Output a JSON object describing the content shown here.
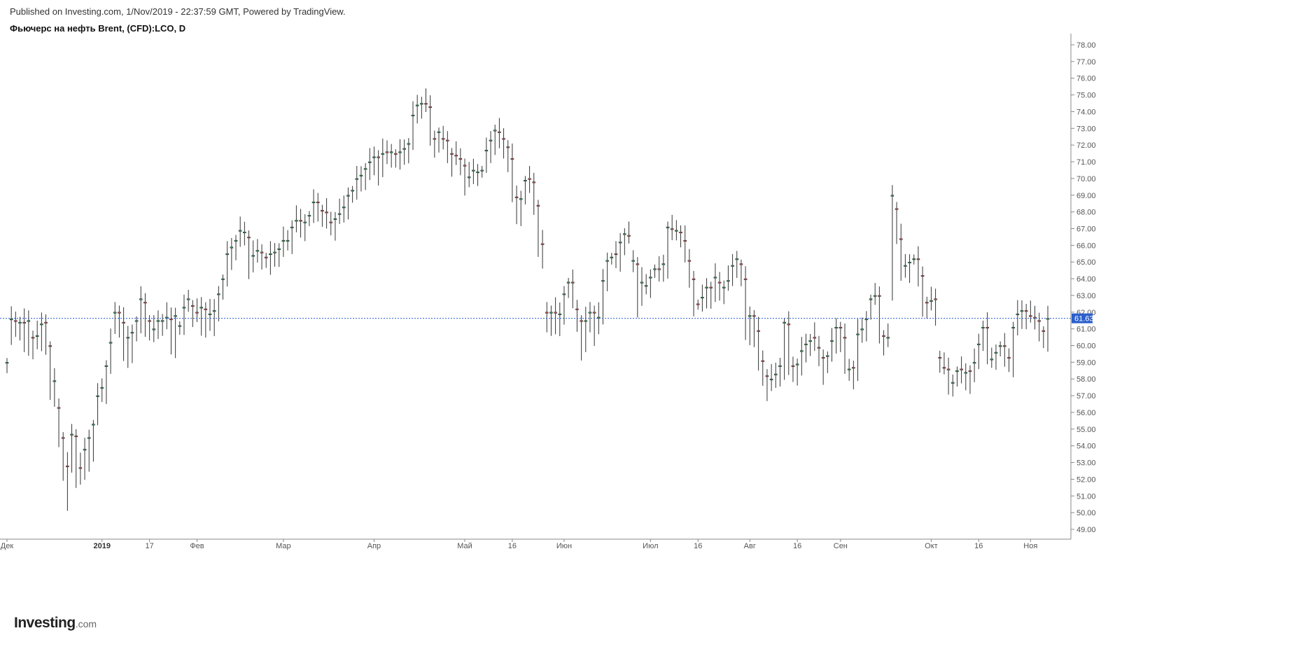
{
  "header": {
    "published": "Published on Investing.com, 1/Nov/2019 - 22:37:59 GMT, Powered by TradingView.",
    "title": "Фьючерс на нефть Brent, (CFD):LCO, D"
  },
  "logo": {
    "main": "Investing",
    "suffix": ".com"
  },
  "colors": {
    "up": "#26a65b",
    "down": "#e05050",
    "last_price": "#2a5fcc"
  },
  "chart_data": {
    "type": "candlestick",
    "ylim": [
      48.5,
      78.5
    ],
    "y_ticks": [
      "49.00",
      "50.00",
      "51.00",
      "52.00",
      "53.00",
      "54.00",
      "55.00",
      "56.00",
      "57.00",
      "58.00",
      "59.00",
      "60.00",
      "61.00",
      "62.00",
      "63.00",
      "64.00",
      "65.00",
      "66.00",
      "67.00",
      "68.00",
      "69.00",
      "70.00",
      "71.00",
      "72.00",
      "73.00",
      "74.00",
      "75.00",
      "76.00",
      "77.00",
      "78.00"
    ],
    "x_ticks": [
      {
        "label": "Дек",
        "i": 0,
        "bold": false
      },
      {
        "label": "2019",
        "i": 22,
        "bold": true
      },
      {
        "label": "17",
        "i": 33,
        "bold": false
      },
      {
        "label": "Фев",
        "i": 44,
        "bold": false
      },
      {
        "label": "Мар",
        "i": 64,
        "bold": false
      },
      {
        "label": "Апр",
        "i": 85,
        "bold": false
      },
      {
        "label": "Май",
        "i": 106,
        "bold": false
      },
      {
        "label": "16",
        "i": 117,
        "bold": false
      },
      {
        "label": "Июн",
        "i": 129,
        "bold": false
      },
      {
        "label": "Июл",
        "i": 149,
        "bold": false
      },
      {
        "label": "16",
        "i": 160,
        "bold": false
      },
      {
        "label": "Авг",
        "i": 172,
        "bold": false
      },
      {
        "label": "16",
        "i": 183,
        "bold": false
      },
      {
        "label": "Сен",
        "i": 193,
        "bold": false
      },
      {
        "label": "Окт",
        "i": 214,
        "bold": false
      },
      {
        "label": "16",
        "i": 225,
        "bold": false
      },
      {
        "label": "Ноя",
        "i": 237,
        "bold": false
      }
    ],
    "last_price": 61.63,
    "last_price_label": "61.63",
    "closes": [
      59.0,
      61.6,
      61.2,
      61.4,
      60.0,
      61.5,
      60.0,
      60.6,
      61.3,
      60.2,
      57.0,
      57.9,
      54.6,
      52.8,
      50.5,
      54.7,
      52.3,
      52.0,
      53.8,
      54.5,
      55.3,
      57.0,
      57.5,
      58.8,
      60.2,
      62.0,
      61.3,
      59.4,
      60.5,
      60.8,
      61.5,
      62.8,
      61.2,
      61.2,
      61.0,
      61.5,
      61.5,
      61.7,
      60.0,
      61.8,
      61.2,
      62.3,
      62.8,
      62.0,
      61.8,
      62.3,
      61.3,
      61.9,
      62.1,
      63.1,
      64.0,
      65.5,
      65.9,
      66.3,
      66.9,
      66.8,
      64.8,
      65.4,
      65.7,
      65.3,
      64.9,
      65.5,
      65.6,
      65.8,
      66.3,
      66.3,
      67.1,
      67.5,
      67.0,
      67.4,
      67.8,
      68.6,
      68.1,
      68.0,
      67.4,
      67.2,
      67.6,
      67.9,
      68.3,
      69.0,
      69.3,
      70.0,
      70.2,
      70.6,
      71.0,
      71.3,
      70.4,
      71.5,
      71.4,
      71.6,
      70.9,
      71.6,
      71.8,
      72.1,
      73.8,
      74.4,
      74.5,
      74.3,
      72.5,
      72.0,
      72.8,
      72.2,
      71.6,
      71.0,
      71.2,
      70.8,
      69.8,
      70.1,
      70.5,
      70.4,
      70.5,
      71.7,
      72.3,
      72.9,
      72.2,
      71.8,
      71.2,
      68.9,
      67.8,
      68.8,
      69.9,
      69.6,
      68.5,
      66.2,
      65.0,
      61.4,
      62.0,
      61.0,
      61.9,
      63.1,
      63.8,
      62.7,
      61.5,
      60.0,
      61.5,
      62.0,
      60.8,
      61.7,
      63.9,
      65.1,
      65.3,
      65.1,
      66.2,
      66.7,
      66.5,
      65.1,
      62.5,
      63.8,
      63.6,
      64.1,
      64.6,
      64.3,
      64.9,
      67.1,
      66.7,
      66.9,
      66.7,
      65.3,
      64.0,
      62.5,
      62.4,
      62.9,
      63.5,
      63.1,
      64.1,
      63.3,
      63.5,
      63.9,
      64.8,
      65.2,
      63.8,
      60.8,
      61.8,
      60.8,
      58.9,
      58.2,
      57.5,
      58.0,
      58.3,
      58.8,
      61.4,
      58.7,
      58.5,
      58.9,
      59.7,
      60.1,
      60.3,
      60.0,
      59.3,
      58.4,
      59.4,
      60.3,
      61.1,
      60.5,
      58.7,
      58.6,
      58.2,
      60.7,
      61.0,
      61.6,
      62.8,
      63.0,
      60.8,
      60.3,
      60.5,
      69.0,
      66.9,
      64.2,
      64.8,
      65.0,
      65.2,
      64.0,
      62.4,
      62.5,
      62.7,
      61.8,
      59.2,
      58.6,
      57.6,
      57.8,
      58.5,
      58.2,
      58.4,
      58.0,
      59.0,
      60.1,
      61.1,
      59.2,
      59.2,
      59.6,
      60.0,
      59.2,
      59.1,
      61.1,
      61.9,
      62.1,
      61.8,
      61.7,
      61.5,
      61.0,
      60.1,
      61.63
    ],
    "opens": [
      58.6,
      60.5,
      61.5,
      61.2,
      61.4,
      60.0,
      60.5,
      60.1,
      60.2,
      61.4,
      60.0,
      56.8,
      56.3,
      54.5,
      52.8,
      53.0,
      54.6,
      52.7,
      52.5,
      53.2,
      53.3,
      55.7,
      57.3,
      57.4,
      58.7,
      61.3,
      62.0,
      61.4,
      59.2,
      59.7,
      60.5,
      61.2,
      62.6,
      61.5,
      60.6,
      61.0,
      61.4,
      61.3,
      61.6,
      60.0,
      60.9,
      61.1,
      62.7,
      62.4,
      62.0,
      61.2,
      62.2,
      61.2,
      61.1,
      62.2,
      63.0,
      64.0,
      65.2,
      66.0,
      66.3,
      66.6,
      66.5,
      64.7,
      65.5,
      65.6,
      65.3,
      64.7,
      65.4,
      65.6,
      65.7,
      66.3,
      66.3,
      67.1,
      67.5,
      67.0,
      67.4,
      67.8,
      68.6,
      68.1,
      68.0,
      67.4,
      67.1,
      67.6,
      67.9,
      68.3,
      68.8,
      69.2,
      69.9,
      70.2,
      70.3,
      70.8,
      71.3,
      70.4,
      71.6,
      71.4,
      71.5,
      71.0,
      71.5,
      71.8,
      72.1,
      73.9,
      74.4,
      74.5,
      74.3,
      72.4,
      71.8,
      72.4,
      72.3,
      71.5,
      71.4,
      71.2,
      70.8,
      69.8,
      70.2,
      70.3,
      70.3,
      70.8,
      71.6,
      72.3,
      72.8,
      72.4,
      71.9,
      71.2,
      68.9,
      67.9,
      68.7,
      70.0,
      69.8,
      68.4,
      66.1,
      62.0,
      61.4,
      62.0,
      61.1,
      62.0,
      63.1,
      63.8,
      62.2,
      61.5,
      60.0,
      61.4,
      62.0,
      61.0,
      61.8,
      64.0,
      65.1,
      65.5,
      65.1,
      66.3,
      66.6,
      65.0,
      64.9,
      62.7,
      63.6,
      63.6,
      64.3,
      64.6,
      64.5,
      64.9,
      67.0,
      66.9,
      66.8,
      66.3,
      65.1,
      64.0,
      62.5,
      62.5,
      62.9,
      63.5,
      63.0,
      63.8,
      63.3,
      63.6,
      64.1,
      64.8,
      64.9,
      64.0,
      60.7,
      61.8,
      60.9,
      59.1,
      58.2,
      57.6,
      58.0,
      58.3,
      58.2,
      61.3,
      58.8,
      58.5,
      58.6,
      59.6,
      60.2,
      60.5,
      59.9,
      59.3,
      58.6,
      59.5,
      60.2,
      61.1,
      60.5,
      58.5,
      58.7,
      58.2,
      60.7,
      61.0,
      61.8,
      62.9,
      63.0,
      60.6,
      60.3,
      63.3,
      68.2,
      66.4,
      64.6,
      64.5,
      65.1,
      65.2,
      64.2,
      62.6,
      62.5,
      62.8,
      59.3,
      58.7,
      58.6,
      57.7,
      57.8,
      58.6,
      58.0,
      58.5,
      58.2,
      59.2,
      60.5,
      61.1,
      59.2,
      59.3,
      59.6,
      60.0,
      59.3,
      59.0,
      61.0,
      61.6,
      62.1,
      61.8,
      61.7,
      61.5,
      60.9,
      60.1
    ]
  }
}
